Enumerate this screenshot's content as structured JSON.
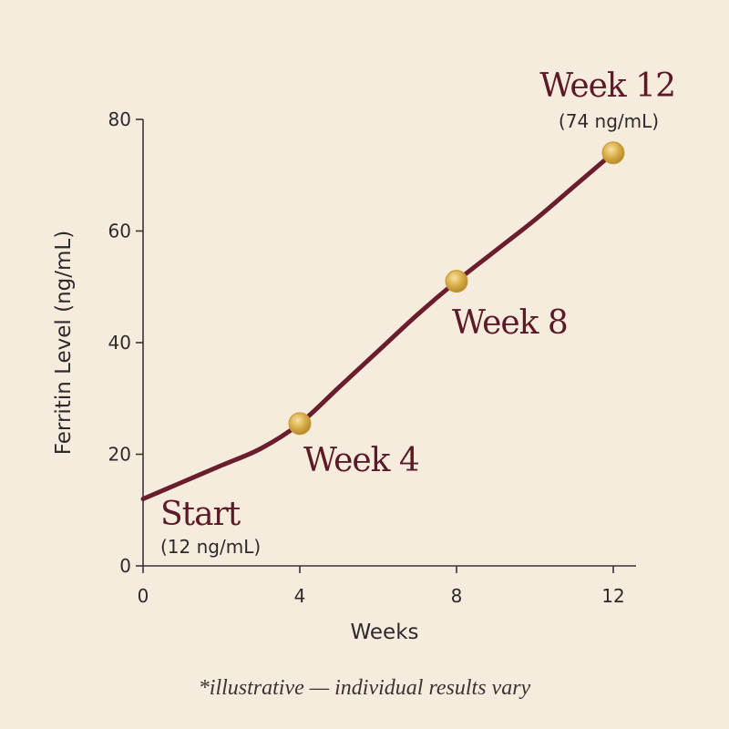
{
  "chart_data": {
    "type": "line",
    "xlabel": "Weeks",
    "ylabel": "Ferritin Level (ng/mL)",
    "xlim": [
      0,
      12
    ],
    "ylim": [
      0,
      80
    ],
    "x_ticks": [
      "0",
      "4",
      "8",
      "12"
    ],
    "y_ticks": [
      "0",
      "20",
      "40",
      "60",
      "80"
    ],
    "grid": false,
    "series": [
      {
        "x": [
          0,
          1,
          2,
          3,
          4,
          5,
          6,
          7,
          8,
          9,
          10,
          11,
          12
        ],
        "values": [
          12,
          15,
          18,
          21,
          25.5,
          32,
          38.5,
          45,
          51,
          56.5,
          62,
          68,
          74
        ]
      }
    ],
    "markers": [
      {
        "x": 4,
        "y": 25.5
      },
      {
        "x": 8,
        "y": 51
      },
      {
        "x": 12,
        "y": 74
      }
    ],
    "annotations": [
      {
        "title": "Start",
        "subtitle": "(12 ng/mL)"
      },
      {
        "title": "Week 4",
        "subtitle": ""
      },
      {
        "title": "Week 8",
        "subtitle": ""
      },
      {
        "title": "Week 12",
        "subtitle": "(74 ng/mL)"
      }
    ],
    "note": "*illustrative — individual results vary",
    "colors": {
      "line": "#6a1e2c",
      "marker": "#d4a83c",
      "background": "#f6ecdd"
    }
  }
}
